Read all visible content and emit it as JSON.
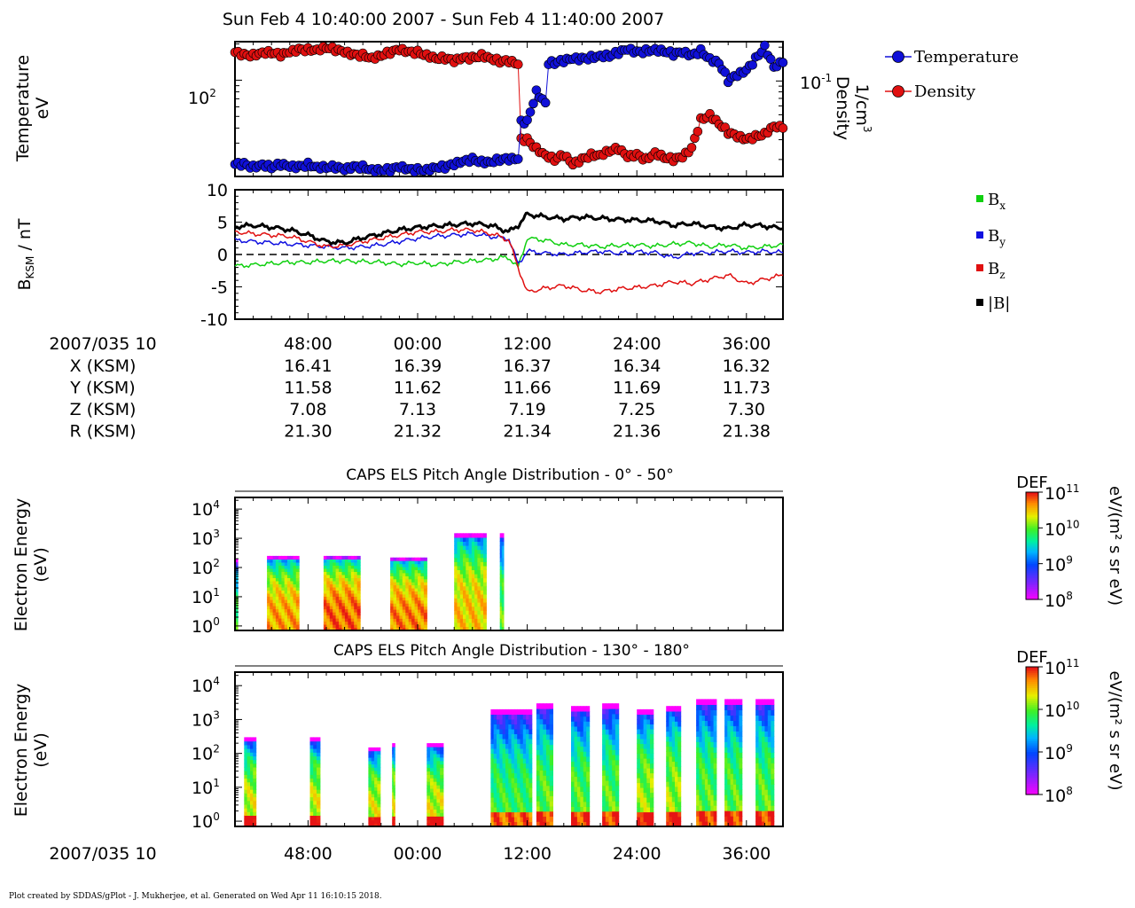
{
  "page": {
    "title": "Sun Feb 4 10:40:00 2007 - Sun Feb 4 11:40:00 2007",
    "footer": "Plot created by SDDAS/gPlot - J. Mukherjee, et al.  Generated on Wed Apr 11 16:10:15 2018."
  },
  "time_axis": {
    "start_label": "2007/035 10",
    "tick_labels": [
      "48:00",
      "00:00",
      "12:00",
      "24:00",
      "36:00"
    ],
    "tick_minutes": [
      8,
      20,
      32,
      44,
      56
    ],
    "range_minutes": [
      0,
      60
    ]
  },
  "ephemeris": {
    "rows": [
      {
        "label": "X (KSM)",
        "values": [
          "16.41",
          "16.39",
          "16.37",
          "16.34",
          "16.32"
        ]
      },
      {
        "label": "Y (KSM)",
        "values": [
          "11.58",
          "11.62",
          "11.66",
          "11.69",
          "11.73"
        ]
      },
      {
        "label": "Z (KSM)",
        "values": [
          "7.08",
          "7.13",
          "7.19",
          "7.25",
          "7.30"
        ]
      },
      {
        "label": "R (KSM)",
        "values": [
          "21.30",
          "21.32",
          "21.34",
          "21.36",
          "21.38"
        ]
      }
    ]
  },
  "colors": {
    "temperature": "#1010d8",
    "density": "#e01010",
    "bx": "#10d010",
    "by": "#1010e0",
    "bz": "#e01010",
    "bmag": "#000000"
  },
  "chart_data": [
    {
      "type": "line",
      "panel": "moments",
      "ylabel_lines": [
        "Temperature",
        "eV"
      ],
      "y2label_lines": [
        "Density",
        "1/cm"
      ],
      "y2label_sup": "3",
      "ytick_left": {
        "base": "10",
        "exp": "2"
      },
      "ytick_right": {
        "base": "10",
        "exp": "-1"
      },
      "y_scale": "log",
      "legend": [
        "Temperature",
        "Density"
      ],
      "series": [
        {
          "name": "Temperature",
          "x_minutes": [
            0,
            1,
            2,
            3,
            4,
            5,
            6,
            7,
            8,
            9,
            10,
            11,
            12,
            13,
            14,
            15,
            16,
            17,
            18,
            19,
            20,
            21,
            22,
            23,
            24,
            25,
            26,
            27,
            28,
            29,
            30,
            31,
            32,
            33,
            34,
            35,
            36,
            37,
            38,
            39,
            40,
            41,
            42,
            43,
            44,
            45,
            46,
            47,
            48,
            49,
            50,
            51,
            52,
            53,
            54,
            55,
            56,
            57,
            58,
            59,
            60
          ],
          "values": [
            20,
            20,
            19,
            20,
            19,
            20,
            19,
            19,
            20,
            19,
            19,
            19,
            18,
            19,
            19,
            18,
            18,
            18,
            19,
            18,
            18,
            18,
            19,
            19,
            20,
            21,
            22,
            21,
            21,
            22,
            22,
            22,
            45,
            80,
            65,
            140,
            145,
            150,
            150,
            155,
            160,
            160,
            170,
            180,
            170,
            175,
            180,
            175,
            165,
            170,
            160,
            175,
            150,
            140,
            100,
            110,
            120,
            150,
            190,
            130,
            140
          ]
        },
        {
          "name": "Density",
          "x_minutes": [
            0,
            1,
            2,
            3,
            4,
            5,
            6,
            7,
            8,
            9,
            10,
            11,
            12,
            13,
            14,
            15,
            16,
            17,
            18,
            19,
            20,
            21,
            22,
            23,
            24,
            25,
            26,
            27,
            28,
            29,
            30,
            31,
            32,
            33,
            34,
            35,
            36,
            37,
            38,
            39,
            40,
            41,
            42,
            43,
            44,
            45,
            46,
            47,
            48,
            49,
            50,
            51,
            52,
            53,
            54,
            55,
            56,
            57,
            58,
            59,
            60
          ],
          "values": [
            0.18,
            0.17,
            0.17,
            0.18,
            0.18,
            0.17,
            0.18,
            0.19,
            0.19,
            0.19,
            0.2,
            0.19,
            0.18,
            0.17,
            0.17,
            0.16,
            0.17,
            0.18,
            0.19,
            0.18,
            0.18,
            0.17,
            0.16,
            0.16,
            0.15,
            0.16,
            0.16,
            0.17,
            0.16,
            0.15,
            0.15,
            0.14,
            0.03,
            0.025,
            0.022,
            0.02,
            0.022,
            0.018,
            0.02,
            0.022,
            0.022,
            0.024,
            0.025,
            0.021,
            0.022,
            0.02,
            0.023,
            0.021,
            0.02,
            0.021,
            0.025,
            0.045,
            0.05,
            0.042,
            0.035,
            0.032,
            0.03,
            0.032,
            0.034,
            0.04,
            0.038
          ]
        }
      ]
    },
    {
      "type": "line",
      "panel": "magnetometer",
      "ylabel": "B",
      "ylabel_sub": "KSM",
      "ylabel_unit": " / nT",
      "ylim": [
        -10,
        10
      ],
      "yticks": [
        10,
        5,
        0,
        -5,
        -10
      ],
      "zero_line": true,
      "legend": [
        {
          "base": "B",
          "sub": "x"
        },
        {
          "base": "B",
          "sub": "y"
        },
        {
          "base": "B",
          "sub": "z"
        },
        {
          "base": "|B|",
          "sub": ""
        }
      ],
      "series": [
        {
          "name": "Bx",
          "x_minutes": [
            0,
            2,
            4,
            6,
            8,
            10,
            12,
            14,
            16,
            18,
            20,
            22,
            24,
            26,
            28,
            29,
            30,
            31,
            32,
            34,
            36,
            38,
            40,
            42,
            44,
            46,
            48,
            50,
            52,
            54,
            56,
            58,
            60
          ],
          "values": [
            -1.8,
            -1.6,
            -1.4,
            -1.2,
            -1.2,
            -1.0,
            -1.0,
            -1.1,
            -1.2,
            -1.5,
            -1.3,
            -1.6,
            -1.2,
            -1.0,
            -0.8,
            -0.5,
            -0.5,
            -2.0,
            2.5,
            2.2,
            1.5,
            1.5,
            1.2,
            1.4,
            1.5,
            1.3,
            1.6,
            1.8,
            1.2,
            1.5,
            1.0,
            1.2,
            1.5
          ]
        },
        {
          "name": "By",
          "x_minutes": [
            0,
            2,
            4,
            6,
            8,
            10,
            12,
            14,
            16,
            18,
            20,
            22,
            24,
            26,
            28,
            29,
            30,
            31,
            32,
            34,
            36,
            38,
            40,
            42,
            44,
            46,
            48,
            50,
            52,
            54,
            56,
            58,
            60
          ],
          "values": [
            2.2,
            2.0,
            1.8,
            1.6,
            1.4,
            1.2,
            1.0,
            1.2,
            1.5,
            2.0,
            2.5,
            2.8,
            3.0,
            3.2,
            2.8,
            2.6,
            2.4,
            -1.5,
            0.5,
            0.2,
            0.0,
            0.3,
            0.5,
            0.2,
            0.4,
            0.3,
            -0.5,
            0.2,
            0.3,
            0.5,
            0.3,
            0.5,
            0.3
          ]
        },
        {
          "name": "Bz",
          "x_minutes": [
            0,
            2,
            4,
            6,
            8,
            10,
            12,
            14,
            16,
            18,
            20,
            22,
            24,
            26,
            28,
            29,
            30,
            31,
            32,
            34,
            36,
            38,
            40,
            42,
            44,
            46,
            48,
            50,
            52,
            54,
            56,
            58,
            60
          ],
          "values": [
            3.5,
            3.2,
            3.0,
            2.8,
            2.0,
            1.2,
            1.4,
            2.0,
            2.5,
            3.0,
            3.5,
            3.5,
            3.8,
            3.8,
            3.2,
            2.8,
            2.2,
            -2.0,
            -5.8,
            -5.2,
            -4.8,
            -5.5,
            -5.8,
            -5.3,
            -5.1,
            -4.8,
            -4.2,
            -4.5,
            -3.8,
            -3.2,
            -4.5,
            -3.8,
            -3.2
          ]
        },
        {
          "name": "|B|",
          "x_minutes": [
            0,
            2,
            4,
            6,
            8,
            10,
            12,
            14,
            16,
            18,
            20,
            22,
            24,
            26,
            28,
            29,
            30,
            31,
            32,
            34,
            36,
            38,
            40,
            42,
            44,
            46,
            48,
            50,
            52,
            54,
            56,
            58,
            60
          ],
          "values": [
            4.3,
            4.5,
            4.2,
            3.8,
            3.0,
            2.0,
            1.8,
            2.6,
            3.2,
            3.8,
            4.2,
            4.4,
            4.6,
            4.8,
            4.5,
            4.0,
            3.5,
            4.5,
            6.2,
            5.8,
            5.5,
            5.8,
            5.6,
            5.4,
            5.3,
            5.2,
            4.5,
            4.8,
            4.3,
            4.0,
            4.6,
            4.4,
            4.0
          ]
        }
      ]
    },
    {
      "type": "heatmap",
      "panel": "pad-0-50",
      "title": "CAPS ELS Pitch Angle Distribution - 0° - 50°",
      "ylabel_lines": [
        "Electron Energy",
        "(eV)"
      ],
      "y_scale": "log",
      "yticks_exp": [
        "4",
        "3",
        "2",
        "1",
        "0"
      ],
      "ylim_eV": [
        0.7,
        25000
      ],
      "colorbar": {
        "title": "DEF",
        "unit": "eV/(m² s sr eV)",
        "ticks_exp": [
          "11",
          "10",
          "9",
          "8"
        ],
        "range": [
          100000000.0,
          100000000000.0
        ]
      },
      "bands": [
        {
          "t0": 0.0,
          "t1": 0.3,
          "emax": 200,
          "peak": 8000000000.0
        },
        {
          "t0": 3.5,
          "t1": 7.0,
          "emax": 250,
          "peak": 40000000000.0
        },
        {
          "t0": 9.7,
          "t1": 13.7,
          "emax": 250,
          "peak": 60000000000.0
        },
        {
          "t0": 17.0,
          "t1": 21.0,
          "emax": 220,
          "peak": 50000000000.0
        },
        {
          "t0": 24.0,
          "t1": 27.5,
          "emax": 1500,
          "peak": 30000000000.0
        },
        {
          "t0": 29.0,
          "t1": 29.4,
          "emax": 1500,
          "peak": 10000000000.0
        }
      ]
    },
    {
      "type": "heatmap",
      "panel": "pad-130-180",
      "title": "CAPS ELS Pitch Angle Distribution - 130° - 180°",
      "ylabel_lines": [
        "Electron Energy",
        "(eV)"
      ],
      "y_scale": "log",
      "yticks_exp": [
        "4",
        "3",
        "2",
        "1",
        "0"
      ],
      "ylim_eV": [
        0.7,
        25000
      ],
      "colorbar": {
        "title": "DEF",
        "unit": "eV/(m² s sr eV)",
        "ticks_exp": [
          "11",
          "10",
          "9",
          "8"
        ],
        "range": [
          100000000.0,
          100000000000.0
        ]
      },
      "bands": [
        {
          "t0": 1.0,
          "t1": 2.3,
          "emax": 300,
          "peak": 20000000000.0
        },
        {
          "t0": 8.2,
          "t1": 9.3,
          "emax": 300,
          "peak": 20000000000.0
        },
        {
          "t0": 14.6,
          "t1": 15.9,
          "emax": 150,
          "peak": 20000000000.0
        },
        {
          "t0": 17.2,
          "t1": 17.5,
          "emax": 200,
          "peak": 20000000000.0
        },
        {
          "t0": 21.0,
          "t1": 22.8,
          "emax": 200,
          "peak": 20000000000.0
        },
        {
          "t0": 28.0,
          "t1": 32.5,
          "emax": 2000,
          "peak": 8000000000.0
        },
        {
          "t0": 33.0,
          "t1": 34.8,
          "emax": 3000,
          "peak": 10000000000.0
        },
        {
          "t0": 36.8,
          "t1": 38.8,
          "emax": 2500,
          "peak": 10000000000.0
        },
        {
          "t0": 40.2,
          "t1": 42.0,
          "emax": 3000,
          "peak": 10000000000.0
        },
        {
          "t0": 44.0,
          "t1": 45.8,
          "emax": 2000,
          "peak": 15000000000.0
        },
        {
          "t0": 47.2,
          "t1": 48.8,
          "emax": 2500,
          "peak": 15000000000.0
        },
        {
          "t0": 50.5,
          "t1": 52.7,
          "emax": 4000,
          "peak": 10000000000.0
        },
        {
          "t0": 53.6,
          "t1": 55.5,
          "emax": 4000,
          "peak": 10000000000.0
        },
        {
          "t0": 57.0,
          "t1": 59.0,
          "emax": 4000,
          "peak": 10000000000.0
        }
      ]
    }
  ]
}
